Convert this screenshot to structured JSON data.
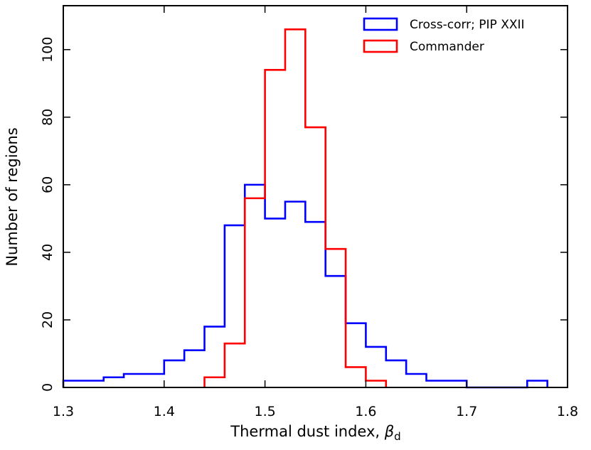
{
  "chart_data": {
    "type": "histogram",
    "xlabel": "Thermal dust index, ",
    "xlabel_symbol": "β",
    "xlabel_subscript": "d",
    "ylabel": "Number of regions",
    "xlim": [
      1.3,
      1.8
    ],
    "ylim": [
      0,
      113
    ],
    "xticks": [
      1.3,
      1.4,
      1.5,
      1.6,
      1.7,
      1.8
    ],
    "xtick_labels": [
      "1.3",
      "1.4",
      "1.5",
      "1.6",
      "1.7",
      "1.8"
    ],
    "yticks": [
      0,
      20,
      40,
      60,
      80,
      100
    ],
    "ytick_labels": [
      "0",
      "20",
      "40",
      "60",
      "80",
      "100"
    ],
    "bin_width": 0.02,
    "legend_position": "top-right",
    "series": [
      {
        "name": "Cross-corr; PIP XXII",
        "color": "#0000ff",
        "bin_starts": [
          1.3,
          1.32,
          1.34,
          1.36,
          1.38,
          1.4,
          1.42,
          1.44,
          1.46,
          1.48,
          1.5,
          1.52,
          1.54,
          1.56,
          1.58,
          1.6,
          1.62,
          1.64,
          1.66,
          1.68,
          1.7,
          1.72,
          1.74,
          1.76
        ],
        "values": [
          2,
          2,
          3,
          4,
          4,
          8,
          11,
          18,
          48,
          60,
          50,
          55,
          49,
          33,
          19,
          12,
          8,
          4,
          2,
          2,
          0,
          0,
          0,
          2
        ]
      },
      {
        "name": "Commander",
        "color": "#ff0000",
        "bin_starts": [
          1.44,
          1.46,
          1.48,
          1.5,
          1.52,
          1.54,
          1.56,
          1.58,
          1.6
        ],
        "values": [
          3,
          13,
          56,
          94,
          106,
          77,
          41,
          6,
          2
        ]
      }
    ]
  }
}
